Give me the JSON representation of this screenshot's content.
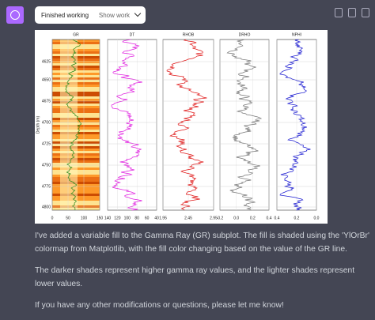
{
  "status_button": {
    "label": "Finished working",
    "toggle": "Show work"
  },
  "figure": {
    "y_label": "Depth (m)",
    "depth_ticks": [
      "4625",
      "4650",
      "4675",
      "4700",
      "4725",
      "4750",
      "4775",
      "4800"
    ],
    "tracks": [
      {
        "title": "GR",
        "ticks": [
          "0",
          "50",
          "100",
          "150"
        ]
      },
      {
        "title": "DT",
        "ticks": [
          "140",
          "120",
          "100",
          "80",
          "60",
          "40"
        ]
      },
      {
        "title": "RHOB",
        "ticks": [
          "1.95",
          "2.45",
          "2.95"
        ]
      },
      {
        "title": "DRHO",
        "ticks": [
          "-0.2",
          "0.0",
          "0.2",
          "0.4"
        ]
      },
      {
        "title": "NPHI",
        "ticks": [
          "0.4",
          "0.2",
          "0.0"
        ]
      }
    ]
  },
  "message": {
    "paragraphs": [
      "I've added a variable fill to the Gamma Ray (GR) subplot. The fill is shaded using the 'YlOrBr' colormap from Matplotlib, with the fill color changing based on the value of the GR line.",
      "The darker shades represent higher gamma ray values, and the lighter shades represent lower values.",
      "If you have any other modifications or questions, please let me know!"
    ]
  }
}
